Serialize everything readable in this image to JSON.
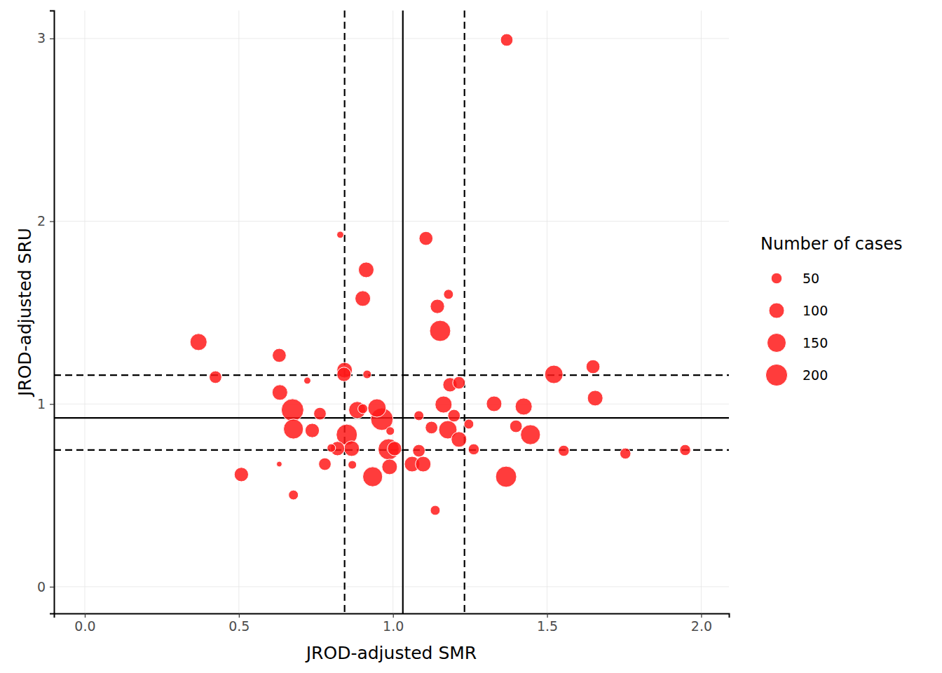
{
  "chart_data": {
    "type": "scatter",
    "xlabel": "JROD-adjusted SMR",
    "ylabel": "JROD-adjusted SRU",
    "color": "#ff1a1a",
    "grid": true,
    "legend": "right",
    "xlim": [
      -0.1,
      2.09
    ],
    "ylim": [
      -0.146,
      3.153
    ],
    "xticks": [
      {
        "value": 0,
        "label": "0.0"
      },
      0.5,
      {
        "value": 1,
        "label": "1.0"
      },
      1.5,
      {
        "value": 2,
        "label": "2.0"
      }
    ],
    "yticks": [
      0,
      1,
      2,
      3
    ],
    "ref_x": {
      "center": 1.032,
      "limits": [
        0.843,
        1.232
      ]
    },
    "ref_y": {
      "center": 0.924,
      "limits": [
        0.748,
        1.158
      ]
    },
    "size_legend": {
      "title": "Number of cases",
      "values": [
        50,
        100,
        150,
        200
      ]
    },
    "x": [
      1.369,
      0.829,
      1.107,
      0.913,
      0.902,
      1.18,
      1.144,
      1.153,
      0.369,
      0.631,
      0.424,
      0.843,
      0.841,
      0.916,
      0.722,
      1.522,
      1.649,
      1.185,
      1.214,
      1.656,
      0.633,
      1.328,
      1.424,
      1.164,
      0.674,
      0.763,
      0.884,
      0.948,
      0.964,
      0.902,
      1.084,
      1.198,
      1.125,
      1.178,
      1.246,
      1.399,
      1.446,
      0.677,
      0.738,
      0.991,
      0.85,
      1.214,
      0.8,
      0.82,
      0.866,
      0.986,
      1.005,
      1.084,
      1.262,
      1.554,
      1.754,
      1.948,
      0.779,
      0.868,
      0.631,
      1.062,
      1.098,
      0.989,
      0.934,
      0.508,
      1.367,
      0.677,
      1.137
    ],
    "values": [
      2.992,
      1.926,
      1.906,
      1.734,
      1.577,
      1.6,
      1.534,
      1.4,
      1.339,
      1.266,
      1.147,
      1.185,
      1.162,
      1.162,
      1.128,
      1.162,
      1.204,
      1.105,
      1.116,
      1.032,
      1.063,
      1.001,
      0.986,
      0.997,
      0.967,
      0.947,
      0.967,
      0.978,
      0.917,
      0.974,
      0.936,
      0.936,
      0.871,
      0.859,
      0.89,
      0.878,
      0.832,
      0.863,
      0.855,
      0.852,
      0.832,
      0.806,
      0.759,
      0.756,
      0.756,
      0.752,
      0.756,
      0.744,
      0.752,
      0.744,
      0.729,
      0.748,
      0.671,
      0.667,
      0.671,
      0.671,
      0.671,
      0.656,
      0.602,
      0.614,
      0.602,
      0.502,
      0.418
    ],
    "sizes": [
      65,
      20,
      80,
      100,
      100,
      40,
      85,
      185,
      120,
      80,
      65,
      100,
      85,
      30,
      20,
      140,
      80,
      85,
      65,
      100,
      100,
      100,
      120,
      120,
      210,
      65,
      120,
      140,
      210,
      40,
      40,
      65,
      65,
      140,
      40,
      65,
      165,
      165,
      85,
      30,
      185,
      100,
      30,
      85,
      100,
      185,
      85,
      65,
      50,
      50,
      50,
      50,
      65,
      30,
      13,
      100,
      100,
      100,
      165,
      85,
      185,
      40,
      40
    ]
  }
}
